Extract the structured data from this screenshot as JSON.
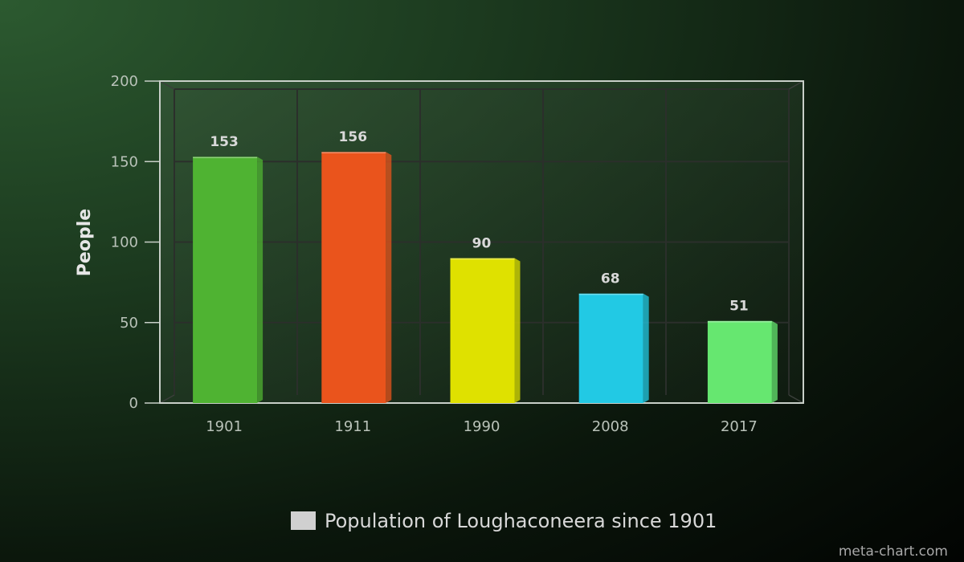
{
  "chart_data": {
    "type": "bar",
    "categories": [
      "1901",
      "1911",
      "1990",
      "2008",
      "2017"
    ],
    "values": [
      153,
      156,
      90,
      68,
      51
    ],
    "bar_colors": [
      "#4fb332",
      "#ea541c",
      "#dfe100",
      "#22c9e4",
      "#66e770"
    ],
    "xlabel": "",
    "ylabel": "People",
    "ylim": [
      0,
      200
    ],
    "yticks": [
      0,
      50,
      100,
      150,
      200
    ],
    "grid": true,
    "legend": {
      "position": "bottom-center",
      "swatch_color": "#d0d0d0"
    },
    "series": [
      {
        "name": "Population of Loughaconeera since 1901",
        "values": [
          153,
          156,
          90,
          68,
          51
        ]
      }
    ]
  },
  "watermark": "meta-chart.com"
}
